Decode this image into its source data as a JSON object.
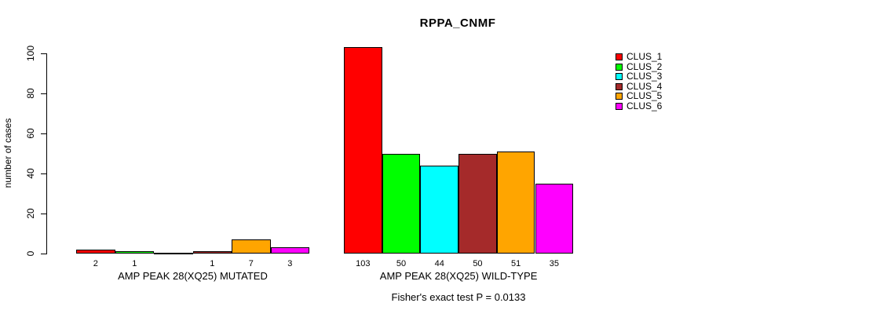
{
  "title": "RPPA_CNMF",
  "y_axis": {
    "label": "number of cases",
    "ticks": [
      0,
      20,
      40,
      60,
      80,
      100
    ]
  },
  "legend": {
    "items": [
      {
        "label": "CLUS_1",
        "color": "#FF0000"
      },
      {
        "label": "CLUS_2",
        "color": "#00FF00"
      },
      {
        "label": "CLUS_3",
        "color": "#00FFFF"
      },
      {
        "label": "CLUS_4",
        "color": "#A52A2A"
      },
      {
        "label": "CLUS_5",
        "color": "#FFA500"
      },
      {
        "label": "CLUS_6",
        "color": "#FF00FF"
      }
    ]
  },
  "footnote": "Fisher's exact test P = 0.0133",
  "chart_data": {
    "type": "bar",
    "title": "RPPA_CNMF",
    "xlabel": "",
    "ylabel": "number of cases",
    "ylim": [
      0,
      100
    ],
    "grid": false,
    "legend_position": "right",
    "series_names": [
      "CLUS_1",
      "CLUS_2",
      "CLUS_3",
      "CLUS_4",
      "CLUS_5",
      "CLUS_6"
    ],
    "series_colors": [
      "#FF0000",
      "#00FF00",
      "#00FFFF",
      "#A52A2A",
      "#FFA500",
      "#FF00FF"
    ],
    "groups": [
      {
        "label": "AMP PEAK 28(XQ25) MUTATED",
        "values": [
          2,
          1,
          0,
          1,
          7,
          3
        ]
      },
      {
        "label": "AMP PEAK 28(XQ25) WILD-TYPE",
        "values": [
          103,
          50,
          44,
          50,
          51,
          35
        ]
      }
    ],
    "annotations": [
      "Fisher's exact test P = 0.0133"
    ]
  }
}
